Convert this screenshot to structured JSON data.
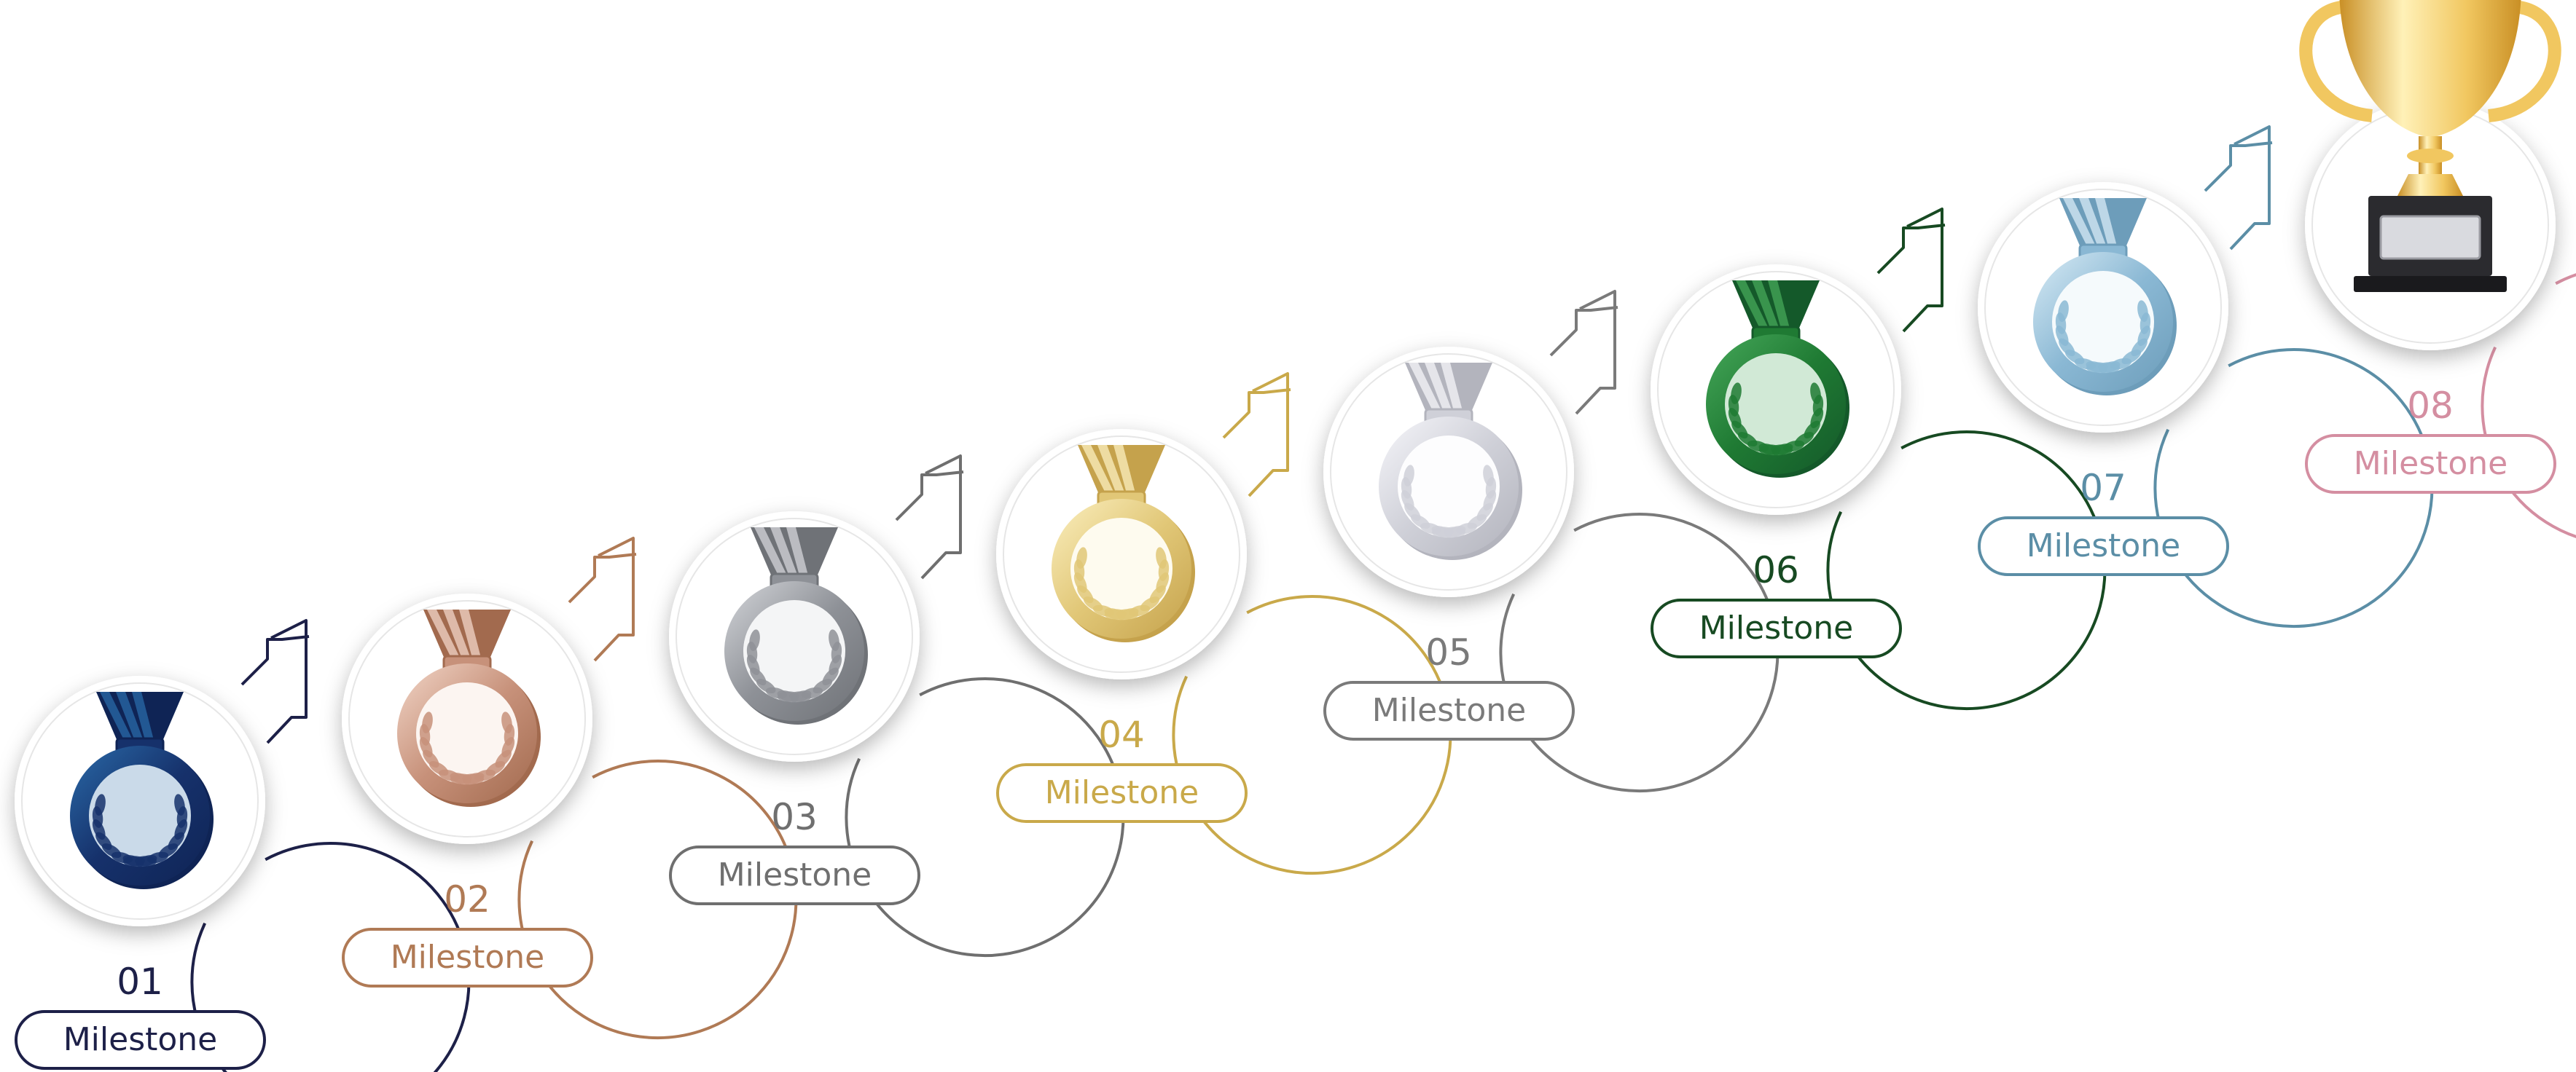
{
  "milestones": [
    {
      "number": "01",
      "label": "Milestone",
      "color": "#1d2048",
      "medal": [
        "#16316b",
        "#2a6aa8",
        "#0f2455"
      ],
      "icon": "blue-medal-icon"
    },
    {
      "number": "02",
      "label": "Milestone",
      "color": "#b07a55",
      "medal": [
        "#c7917a",
        "#f2d6c8",
        "#a26a4e"
      ],
      "icon": "bronze-medal-icon"
    },
    {
      "number": "03",
      "label": "Milestone",
      "color": "#6f6f6f",
      "medal": [
        "#8e9197",
        "#d4d6da",
        "#6f7277"
      ],
      "icon": "silver-medal-icon"
    },
    {
      "number": "04",
      "label": "Milestone",
      "color": "#c9a94a",
      "medal": [
        "#e1c777",
        "#fbefbf",
        "#c5a24c"
      ],
      "icon": "gold-medal-icon"
    },
    {
      "number": "05",
      "label": "Milestone",
      "color": "#7a7a7a",
      "medal": [
        "#cfd0d8",
        "#f6f6fa",
        "#b3b4bd"
      ],
      "icon": "platinum-medal-icon"
    },
    {
      "number": "06",
      "label": "Milestone",
      "color": "#174a22",
      "medal": [
        "#1f7a33",
        "#46a85a",
        "#14592a"
      ],
      "icon": "green-medal-icon"
    },
    {
      "number": "07",
      "label": "Milestone",
      "color": "#5b8ea6",
      "medal": [
        "#8ab8d4",
        "#d8ebf5",
        "#6d9dba"
      ],
      "icon": "light-blue-medal-icon"
    },
    {
      "number": "08",
      "label": "Milestone",
      "color": "#d48ea1",
      "medal": [
        "#f1c760",
        "#fff1b8",
        "#c98f25"
      ],
      "icon": "trophy-icon"
    }
  ]
}
